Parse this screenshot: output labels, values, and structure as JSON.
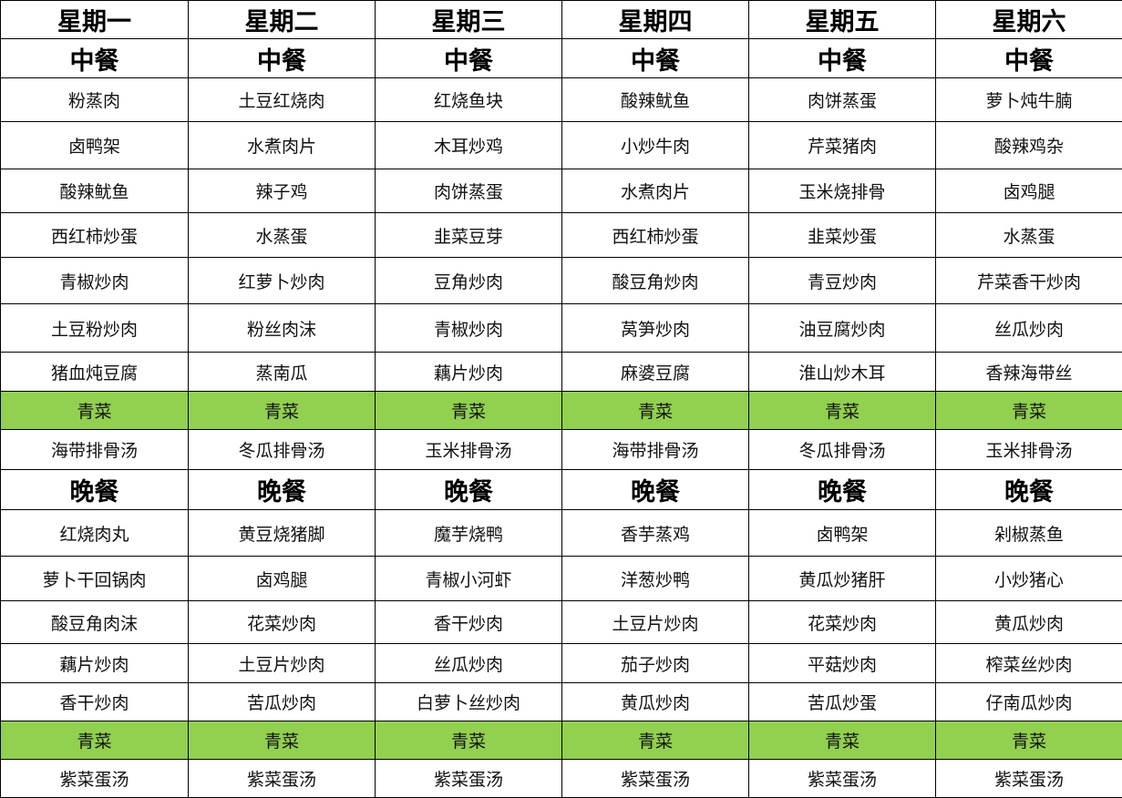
{
  "colors": {
    "vegetable_row": "#92D050"
  },
  "days": [
    "星期一",
    "星期二",
    "星期三",
    "星期四",
    "星期五",
    "星期六"
  ],
  "lunch": {
    "label": "中餐",
    "dishes": [
      [
        "粉蒸肉",
        "土豆红烧肉",
        "红烧鱼块",
        "酸辣鱿鱼",
        "肉饼蒸蛋",
        "萝卜炖牛腩"
      ],
      [
        "卤鸭架",
        "水煮肉片",
        "木耳炒鸡",
        "小炒牛肉",
        "芹菜猪肉",
        "酸辣鸡杂"
      ],
      [
        "酸辣鱿鱼",
        "辣子鸡",
        "肉饼蒸蛋",
        "水煮肉片",
        "玉米烧排骨",
        "卤鸡腿"
      ],
      [
        "西红柿炒蛋",
        "水蒸蛋",
        "韭菜豆芽",
        "西红柿炒蛋",
        "韭菜炒蛋",
        "水蒸蛋"
      ],
      [
        "青椒炒肉",
        "红萝卜炒肉",
        "豆角炒肉",
        "酸豆角炒肉",
        "青豆炒肉",
        "芹菜香干炒肉"
      ],
      [
        "土豆粉炒肉",
        "粉丝肉沫",
        "青椒炒肉",
        "莴笋炒肉",
        "油豆腐炒肉",
        "丝瓜炒肉"
      ],
      [
        "猪血炖豆腐",
        "蒸南瓜",
        "藕片炒肉",
        "麻婆豆腐",
        "淮山炒木耳",
        "香辣海带丝"
      ]
    ],
    "vegetable": [
      "青菜",
      "青菜",
      "青菜",
      "青菜",
      "青菜",
      "青菜"
    ],
    "soup": [
      "海带排骨汤",
      "冬瓜排骨汤",
      "玉米排骨汤",
      "海带排骨汤",
      "冬瓜排骨汤",
      "玉米排骨汤"
    ]
  },
  "dinner": {
    "label": "晚餐",
    "dishes": [
      [
        "红烧肉丸",
        "黄豆烧猪脚",
        "魔芋烧鸭",
        "香芋蒸鸡",
        "卤鸭架",
        "剁椒蒸鱼"
      ],
      [
        "萝卜干回锅肉",
        "卤鸡腿",
        "青椒小河虾",
        "洋葱炒鸭",
        "黄瓜炒猪肝",
        "小炒猪心"
      ],
      [
        "酸豆角肉沫",
        "花菜炒肉",
        "香干炒肉",
        "土豆片炒肉",
        "花菜炒肉",
        "黄瓜炒肉"
      ],
      [
        "藕片炒肉",
        "土豆片炒肉",
        "丝瓜炒肉",
        "茄子炒肉",
        "平菇炒肉",
        "榨菜丝炒肉"
      ],
      [
        "香干炒肉",
        "苦瓜炒肉",
        "白萝卜丝炒肉",
        "黄瓜炒肉",
        "苦瓜炒蛋",
        "仔南瓜炒肉"
      ]
    ],
    "vegetable": [
      "青菜",
      "青菜",
      "青菜",
      "青菜",
      "青菜",
      "青菜"
    ],
    "soup": [
      "紫菜蛋汤",
      "紫菜蛋汤",
      "紫菜蛋汤",
      "紫菜蛋汤",
      "紫菜蛋汤",
      "紫菜蛋汤"
    ]
  }
}
